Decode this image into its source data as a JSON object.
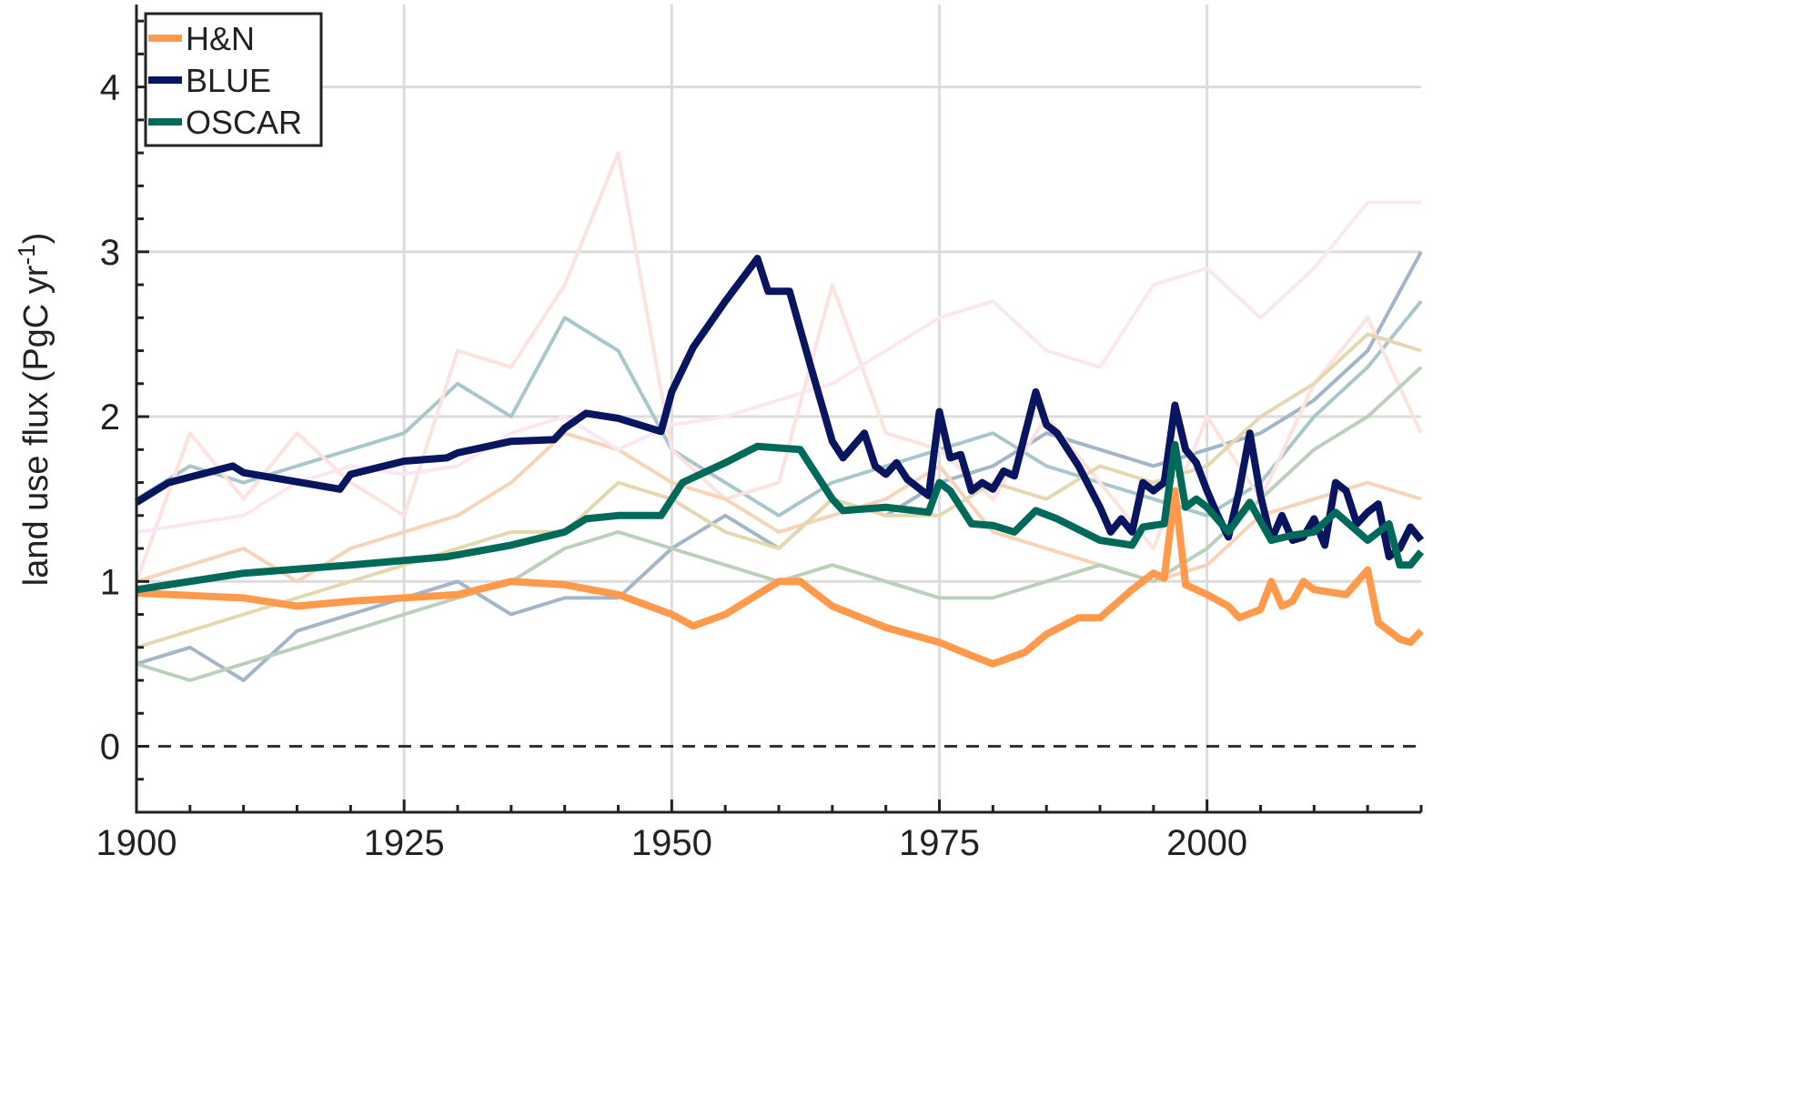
{
  "chart_data": {
    "type": "line",
    "title": "",
    "xlabel": "",
    "ylabel": "land use flux (PgC yr",
    "ylabel_superscript": "-1",
    "ylabel_close": ")",
    "xlim": [
      1900,
      2020
    ],
    "ylim": [
      -0.4,
      4.5
    ],
    "xticks": [
      1900,
      1925,
      1950,
      1975,
      2000
    ],
    "yticks": [
      0,
      1,
      2,
      3,
      4
    ],
    "grid": true,
    "zero_line": "dashed",
    "legend_position": "top-left",
    "series": [
      {
        "name": "H&N",
        "color": "#ff9a4d",
        "emphasis": true,
        "x": [
          1900,
          1910,
          1915,
          1920,
          1925,
          1930,
          1935,
          1940,
          1945,
          1950,
          1952,
          1955,
          1960,
          1962,
          1965,
          1970,
          1975,
          1978,
          1980,
          1983,
          1985,
          1988,
          1990,
          1993,
          1995,
          1996,
          1997,
          1998,
          2000,
          2002,
          2003,
          2005,
          2006,
          2007,
          2008,
          2009,
          2010,
          2013,
          2015,
          2016,
          2018,
          2019,
          2020
        ],
        "y": [
          0.93,
          0.9,
          0.85,
          0.88,
          0.9,
          0.92,
          1.0,
          0.98,
          0.92,
          0.8,
          0.73,
          0.8,
          1.0,
          1.0,
          0.85,
          0.72,
          0.63,
          0.55,
          0.5,
          0.57,
          0.68,
          0.78,
          0.78,
          0.95,
          1.05,
          1.02,
          1.55,
          0.98,
          0.92,
          0.85,
          0.78,
          0.83,
          1.0,
          0.85,
          0.88,
          1.0,
          0.95,
          0.92,
          1.07,
          0.75,
          0.65,
          0.63,
          0.7
        ]
      },
      {
        "name": "BLUE",
        "color": "#0a1560",
        "emphasis": true,
        "x": [
          1900,
          1903,
          1909,
          1910,
          1919,
          1920,
          1925,
          1929,
          1930,
          1935,
          1939,
          1940,
          1942,
          1945,
          1949,
          1950,
          1952,
          1955,
          1958,
          1959,
          1961,
          1963,
          1965,
          1966,
          1968,
          1969,
          1970,
          1971,
          1972,
          1974,
          1975,
          1976,
          1977,
          1978,
          1979,
          1980,
          1981,
          1982,
          1984,
          1985,
          1986,
          1988,
          1990,
          1991,
          1992,
          1993,
          1994,
          1995,
          1996,
          1997,
          1998,
          1999,
          2000,
          2001,
          2002,
          2003,
          2004,
          2005,
          2006,
          2007,
          2008,
          2009,
          2010,
          2011,
          2012,
          2013,
          2014,
          2015,
          2016,
          2017,
          2018,
          2019,
          2020
        ],
        "y": [
          1.48,
          1.6,
          1.7,
          1.66,
          1.56,
          1.65,
          1.73,
          1.75,
          1.78,
          1.85,
          1.86,
          1.93,
          2.02,
          1.99,
          1.91,
          2.15,
          2.42,
          2.7,
          2.96,
          2.76,
          2.76,
          2.3,
          1.85,
          1.75,
          1.9,
          1.7,
          1.65,
          1.72,
          1.62,
          1.52,
          2.03,
          1.75,
          1.77,
          1.55,
          1.6,
          1.56,
          1.67,
          1.64,
          2.15,
          1.95,
          1.9,
          1.7,
          1.45,
          1.3,
          1.38,
          1.3,
          1.6,
          1.55,
          1.6,
          2.07,
          1.8,
          1.72,
          1.55,
          1.4,
          1.27,
          1.55,
          1.9,
          1.52,
          1.25,
          1.4,
          1.25,
          1.27,
          1.38,
          1.22,
          1.6,
          1.55,
          1.35,
          1.42,
          1.47,
          1.15,
          1.2,
          1.33,
          1.25
        ]
      },
      {
        "name": "OSCAR",
        "color": "#006a5a",
        "emphasis": true,
        "x": [
          1900,
          1910,
          1920,
          1929,
          1935,
          1940,
          1942,
          1945,
          1949,
          1951,
          1955,
          1958,
          1962,
          1965,
          1966,
          1970,
          1974,
          1975,
          1976,
          1978,
          1980,
          1982,
          1984,
          1986,
          1990,
          1993,
          1994,
          1996,
          1997,
          1998,
          1999,
          2000,
          2002,
          2004,
          2006,
          2008,
          2010,
          2012,
          2015,
          2017,
          2018,
          2019,
          2020
        ],
        "y": [
          0.95,
          1.05,
          1.1,
          1.15,
          1.22,
          1.3,
          1.38,
          1.4,
          1.4,
          1.6,
          1.72,
          1.82,
          1.8,
          1.5,
          1.43,
          1.45,
          1.42,
          1.6,
          1.55,
          1.35,
          1.34,
          1.3,
          1.43,
          1.38,
          1.25,
          1.22,
          1.33,
          1.35,
          1.83,
          1.45,
          1.5,
          1.45,
          1.3,
          1.48,
          1.25,
          1.28,
          1.3,
          1.42,
          1.25,
          1.35,
          1.1,
          1.1,
          1.18
        ]
      },
      {
        "color": "#a3b5c8",
        "x_start": 1900,
        "x_step": 5,
        "y": [
          0.5,
          0.6,
          0.4,
          0.7,
          0.8,
          0.9,
          1.0,
          0.8,
          0.9,
          0.9,
          1.2,
          1.4,
          1.2,
          1.5,
          1.4,
          1.6,
          1.7,
          1.9,
          1.8,
          1.7,
          1.8,
          1.9,
          2.1,
          2.4,
          3.0
        ]
      },
      {
        "color": "#a9c6ca",
        "x_start": 1900,
        "x_step": 5,
        "y": [
          1.5,
          1.7,
          1.6,
          1.7,
          1.8,
          1.9,
          2.2,
          2.0,
          2.6,
          2.4,
          1.8,
          1.6,
          1.4,
          1.6,
          1.7,
          1.8,
          1.9,
          1.7,
          1.6,
          1.5,
          1.4,
          1.6,
          2.0,
          2.3,
          2.7
        ]
      },
      {
        "color": "#fde2df",
        "x_start": 1900,
        "x_step": 5,
        "y": [
          1.0,
          1.9,
          1.5,
          1.9,
          1.6,
          1.4,
          2.4,
          2.3,
          2.8,
          3.6,
          1.8,
          1.5,
          1.6,
          2.8,
          1.9,
          1.8,
          1.5,
          2.0,
          1.6,
          1.2,
          2.0,
          1.5,
          2.2,
          2.6,
          1.9
        ]
      },
      {
        "color": "#f9d3b6",
        "x_start": 1900,
        "x_step": 5,
        "y": [
          1.0,
          1.1,
          1.2,
          1.0,
          1.2,
          1.3,
          1.4,
          1.6,
          1.9,
          1.8,
          1.6,
          1.5,
          1.3,
          1.4,
          1.5,
          1.7,
          1.3,
          1.2,
          1.1,
          1.0,
          1.1,
          1.4,
          1.5,
          1.6,
          1.5
        ]
      },
      {
        "color": "#e4d8b0",
        "x_start": 1900,
        "x_step": 5,
        "y": [
          0.6,
          0.7,
          0.8,
          0.9,
          1.0,
          1.1,
          1.2,
          1.3,
          1.3,
          1.6,
          1.5,
          1.3,
          1.2,
          1.5,
          1.4,
          1.4,
          1.6,
          1.5,
          1.7,
          1.6,
          1.7,
          2.0,
          2.2,
          2.5,
          2.4
        ]
      },
      {
        "color": "#fbe7f3",
        "x_start": 1900,
        "x_step": 5,
        "y": [
          1.3,
          1.35,
          1.4,
          1.6,
          1.7,
          1.65,
          1.7,
          1.9,
          2.0,
          1.8,
          1.95,
          2.0,
          2.1,
          2.2,
          2.4,
          2.6,
          2.7,
          2.4,
          2.3,
          2.8,
          2.9,
          2.6,
          2.9,
          3.3,
          3.3
        ]
      },
      {
        "color": "#bccfbc",
        "x_start": 1900,
        "x_step": 5,
        "y": [
          0.5,
          0.4,
          0.5,
          0.6,
          0.7,
          0.8,
          0.9,
          1.0,
          1.2,
          1.3,
          1.2,
          1.1,
          1.0,
          1.1,
          1.0,
          0.9,
          0.9,
          1.0,
          1.1,
          1.0,
          1.2,
          1.5,
          1.8,
          2.0,
          2.3
        ]
      }
    ]
  }
}
